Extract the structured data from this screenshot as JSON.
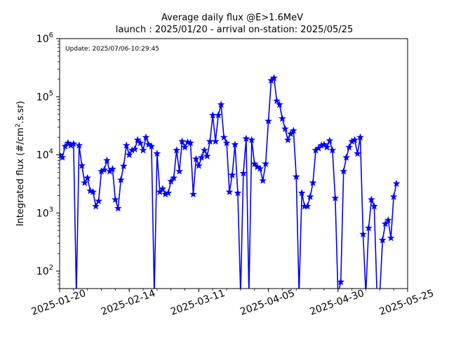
{
  "chart_data": {
    "type": "line",
    "title": "Average daily flux @E>1.6MeV",
    "subtitle": "launch : 2025/01/20 - arrival on-station: 2025/05/25",
    "annotation": "Update: 2025/07/06-10:29:45",
    "ylabel_main": "Integrated flux (#/cm",
    "ylabel_sup": "2",
    "ylabel_tail": ".s.sr)",
    "xlabel": "",
    "yscale": "log",
    "ylim": [
      50,
      1000000
    ],
    "xlim": [
      "2025-01-20",
      "2025-05-25"
    ],
    "grid": false,
    "legend": "none",
    "color": "#0000ff",
    "marker": "star",
    "x_ticks": [
      "2025-01-20",
      "2025-02-14",
      "2025-03-11",
      "2025-04-05",
      "2025-04-30",
      "2025-05-25"
    ],
    "y_ticks": [
      {
        "value": 100,
        "base": "10",
        "exp": "2"
      },
      {
        "value": 1000,
        "base": "10",
        "exp": "3"
      },
      {
        "value": 10000,
        "base": "10",
        "exp": "4"
      },
      {
        "value": 100000,
        "base": "10",
        "exp": "5"
      },
      {
        "value": 1000000,
        "base": "10",
        "exp": "6"
      }
    ],
    "series": [
      {
        "points": [
          [
            "2025-01-20",
            10000
          ],
          [
            "2025-01-21",
            9000
          ],
          [
            "2025-01-22",
            14000
          ],
          [
            "2025-01-23",
            16000
          ],
          [
            "2025-01-24",
            14500
          ],
          [
            "2025-01-25",
            15500
          ],
          [
            "2025-01-26",
            40
          ],
          [
            "2025-01-27",
            14500
          ],
          [
            "2025-01-28",
            6500
          ],
          [
            "2025-01-29",
            3300
          ],
          [
            "2025-01-30",
            4000
          ],
          [
            "2025-01-31",
            2400
          ],
          [
            "2025-02-01",
            2300
          ],
          [
            "2025-02-02",
            1300
          ],
          [
            "2025-02-03",
            1600
          ],
          [
            "2025-02-04",
            5200
          ],
          [
            "2025-02-05",
            5500
          ],
          [
            "2025-02-06",
            8000
          ],
          [
            "2025-02-07",
            5200
          ],
          [
            "2025-02-08",
            5700
          ],
          [
            "2025-02-09",
            1700
          ],
          [
            "2025-02-10",
            1200
          ],
          [
            "2025-02-11",
            3700
          ],
          [
            "2025-02-12",
            6400
          ],
          [
            "2025-02-13",
            14500
          ],
          [
            "2025-02-14",
            10000
          ],
          [
            "2025-02-15",
            12000
          ],
          [
            "2025-02-16",
            12500
          ],
          [
            "2025-02-17",
            18000
          ],
          [
            "2025-02-18",
            16000
          ],
          [
            "2025-02-19",
            12000
          ],
          [
            "2025-02-20",
            20000
          ],
          [
            "2025-02-21",
            15000
          ],
          [
            "2025-02-22",
            14000
          ],
          [
            "2025-02-23",
            40
          ],
          [
            "2025-02-24",
            10500
          ],
          [
            "2025-02-25",
            2300
          ],
          [
            "2025-02-26",
            2600
          ],
          [
            "2025-02-27",
            2100
          ],
          [
            "2025-02-28",
            2200
          ],
          [
            "2025-03-01",
            3500
          ],
          [
            "2025-03-02",
            4000
          ],
          [
            "2025-03-03",
            12000
          ],
          [
            "2025-03-04",
            5200
          ],
          [
            "2025-03-05",
            17000
          ],
          [
            "2025-03-06",
            13500
          ],
          [
            "2025-03-07",
            16500
          ],
          [
            "2025-03-08",
            16000
          ],
          [
            "2025-03-09",
            2100
          ],
          [
            "2025-03-10",
            8500
          ],
          [
            "2025-03-11",
            6500
          ],
          [
            "2025-03-12",
            9000
          ],
          [
            "2025-03-13",
            12000
          ],
          [
            "2025-03-14",
            9500
          ],
          [
            "2025-03-15",
            17000
          ],
          [
            "2025-03-16",
            48000
          ],
          [
            "2025-03-17",
            17000
          ],
          [
            "2025-03-18",
            48000
          ],
          [
            "2025-03-19",
            73000
          ],
          [
            "2025-03-20",
            20000
          ],
          [
            "2025-03-21",
            16000
          ],
          [
            "2025-03-22",
            2300
          ],
          [
            "2025-03-23",
            4500
          ],
          [
            "2025-03-24",
            15000
          ],
          [
            "2025-03-25",
            2200
          ],
          [
            "2025-03-26",
            40
          ],
          [
            "2025-03-27",
            4800
          ],
          [
            "2025-03-28",
            19000
          ],
          [
            "2025-03-29",
            40
          ],
          [
            "2025-03-30",
            18000
          ],
          [
            "2025-03-31",
            7000
          ],
          [
            "2025-04-01",
            6200
          ],
          [
            "2025-04-02",
            5800
          ],
          [
            "2025-04-03",
            3600
          ],
          [
            "2025-04-04",
            7000
          ],
          [
            "2025-04-05",
            38000
          ],
          [
            "2025-04-06",
            190000
          ],
          [
            "2025-04-07",
            210000
          ],
          [
            "2025-04-08",
            85000
          ],
          [
            "2025-04-09",
            73000
          ],
          [
            "2025-04-10",
            42000
          ],
          [
            "2025-04-11",
            28000
          ],
          [
            "2025-04-12",
            18000
          ],
          [
            "2025-04-13",
            23000
          ],
          [
            "2025-04-14",
            26000
          ],
          [
            "2025-04-15",
            4200
          ],
          [
            "2025-04-16",
            40
          ],
          [
            "2025-04-17",
            2200
          ],
          [
            "2025-04-18",
            1300
          ],
          [
            "2025-04-19",
            1300
          ],
          [
            "2025-04-20",
            1900
          ],
          [
            "2025-04-21",
            3300
          ],
          [
            "2025-04-22",
            12000
          ],
          [
            "2025-04-23",
            13000
          ],
          [
            "2025-04-24",
            14500
          ],
          [
            "2025-04-25",
            15000
          ],
          [
            "2025-04-26",
            13500
          ],
          [
            "2025-04-27",
            17500
          ],
          [
            "2025-04-28",
            12000
          ],
          [
            "2025-04-29",
            1800
          ],
          [
            "2025-04-30",
            40
          ],
          [
            "2025-05-01",
            65
          ],
          [
            "2025-05-02",
            5200
          ],
          [
            "2025-05-03",
            9000
          ],
          [
            "2025-05-04",
            13500
          ],
          [
            "2025-05-05",
            17000
          ],
          [
            "2025-05-06",
            18000
          ],
          [
            "2025-05-07",
            10500
          ],
          [
            "2025-05-08",
            20000
          ],
          [
            "2025-05-09",
            430
          ],
          [
            "2025-05-10",
            40
          ],
          [
            "2025-05-11",
            550
          ],
          [
            "2025-05-12",
            1700
          ],
          [
            "2025-05-13",
            1300
          ],
          [
            "2025-05-14",
            40
          ],
          [
            "2025-05-15",
            40
          ],
          [
            "2025-05-16",
            340
          ],
          [
            "2025-05-17",
            650
          ],
          [
            "2025-05-18",
            750
          ],
          [
            "2025-05-19",
            370
          ],
          [
            "2025-05-20",
            1900
          ],
          [
            "2025-05-21",
            3200
          ]
        ]
      }
    ]
  }
}
